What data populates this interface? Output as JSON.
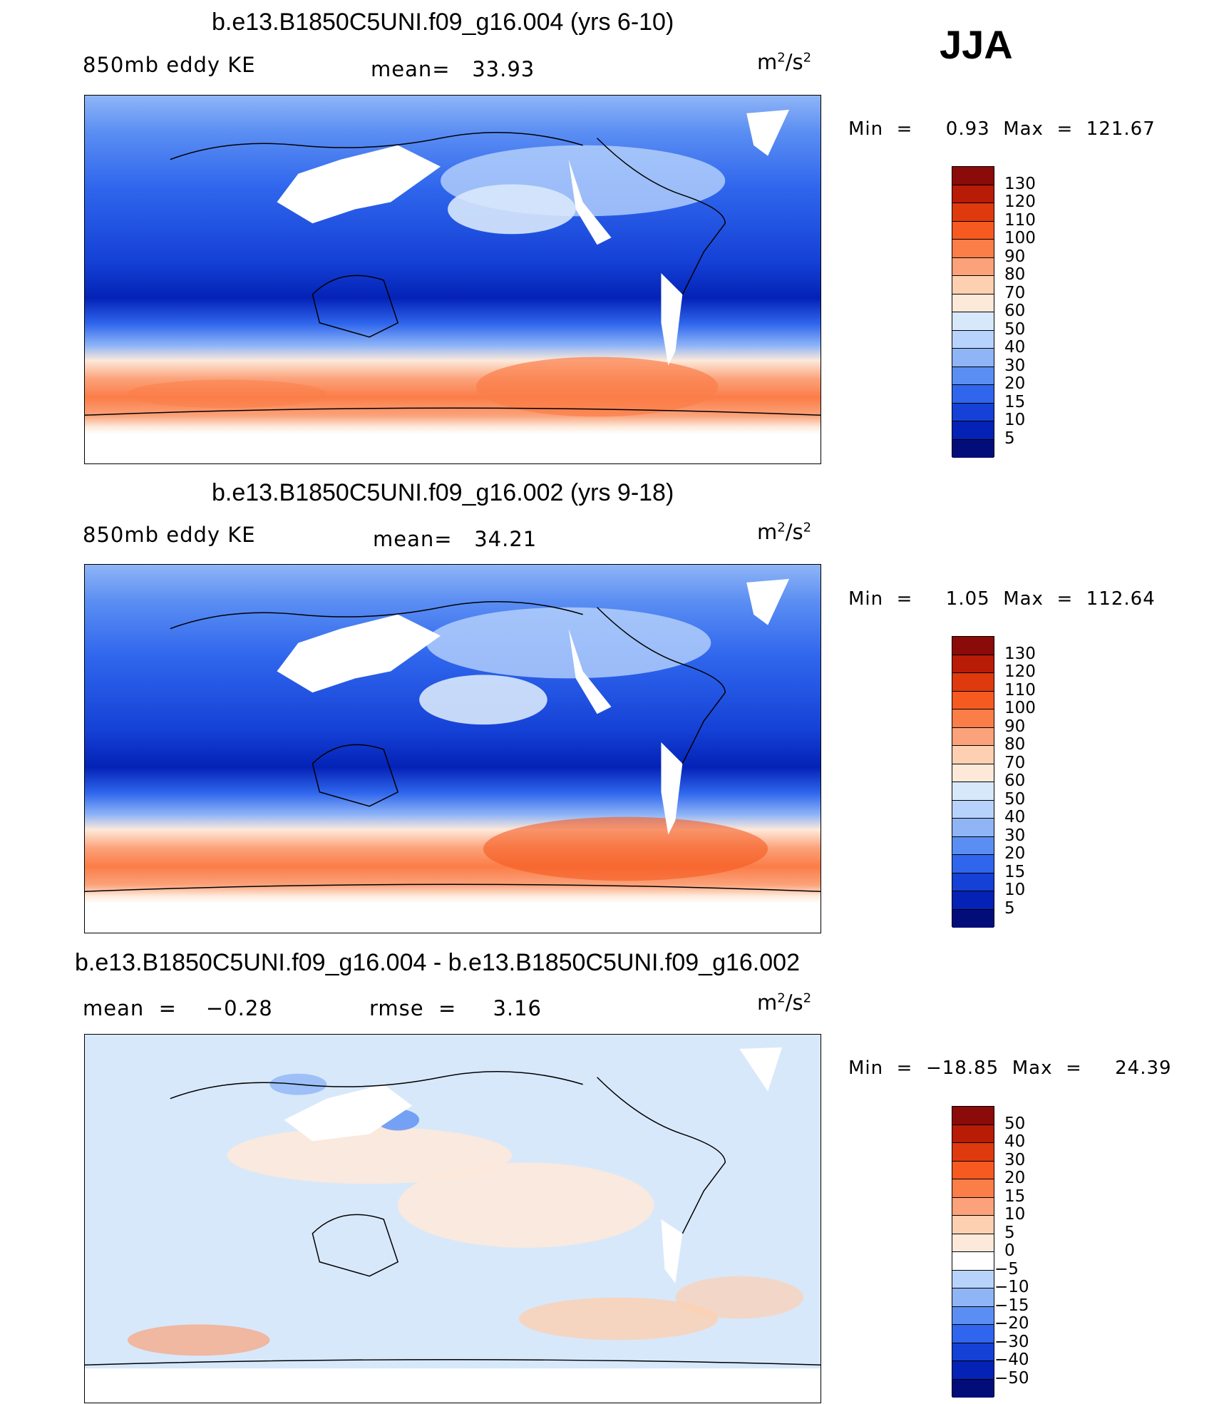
{
  "season": "JJA",
  "panels": [
    {
      "id": "panel1",
      "title": "b.e13.B1850C5UNI.f09_g16.004 (yrs 6-10)",
      "left_label": "850mb eddy KE",
      "mid_label": "mean=   33.93",
      "units_base": "m",
      "units_exp1": "2",
      "units_mid": "/s",
      "units_exp2": "2",
      "minmax": "Min  =     0.93  Max  =  121.67",
      "levels": [
        "130",
        "120",
        "110",
        "100",
        "90",
        "80",
        "70",
        "60",
        "50",
        "40",
        "30",
        "20",
        "15",
        "10",
        "5"
      ],
      "colors": [
        "#8b0a0a",
        "#b81b06",
        "#de3a0e",
        "#f75a20",
        "#fb7d48",
        "#fba27a",
        "#fdd0b2",
        "#fde9da",
        "#d8e8fb",
        "#b8d3fb",
        "#8fb5f7",
        "#5b8ef3",
        "#2f66ed",
        "#1541d6",
        "#0422b6",
        "#020d7a"
      ],
      "mean_value": 33.93
    },
    {
      "id": "panel2",
      "title": "b.e13.B1850C5UNI.f09_g16.002 (yrs 9-18)",
      "left_label": "850mb eddy KE",
      "mid_label": "mean=   34.21",
      "units_base": "m",
      "units_exp1": "2",
      "units_mid": "/s",
      "units_exp2": "2",
      "minmax": "Min  =     1.05  Max  =  112.64",
      "levels": [
        "130",
        "120",
        "110",
        "100",
        "90",
        "80",
        "70",
        "60",
        "50",
        "40",
        "30",
        "20",
        "15",
        "10",
        "5"
      ],
      "colors": [
        "#8b0a0a",
        "#b81b06",
        "#de3a0e",
        "#f75a20",
        "#fb7d48",
        "#fba27a",
        "#fdd0b2",
        "#fde9da",
        "#d8e8fb",
        "#b8d3fb",
        "#8fb5f7",
        "#5b8ef3",
        "#2f66ed",
        "#1541d6",
        "#0422b6",
        "#020d7a"
      ],
      "mean_value": 34.21
    },
    {
      "id": "panel3",
      "title": "b.e13.B1850C5UNI.f09_g16.004 - b.e13.B1850C5UNI.f09_g16.002",
      "left_label": "mean  =    −0.28",
      "mid_label": "rmse  =     3.16",
      "units_base": "m",
      "units_exp1": "2",
      "units_mid": "/s",
      "units_exp2": "2",
      "minmax": "Min  =  −18.85  Max  =     24.39",
      "levels": [
        "50",
        "40",
        "30",
        "20",
        "15",
        "10",
        "5",
        "0",
        "−5",
        "−10",
        "−15",
        "−20",
        "−30",
        "−40",
        "−50"
      ],
      "colors": [
        "#8b0a0a",
        "#b81b06",
        "#de3a0e",
        "#f75a20",
        "#fb7d48",
        "#fba27a",
        "#fdd0b2",
        "#fde9da",
        "#ffffff",
        "#b8d3fb",
        "#8fb5f7",
        "#5b8ef3",
        "#2f66ed",
        "#1541d6",
        "#0422b6",
        "#020d7a"
      ],
      "mean_value": -0.28
    }
  ]
}
